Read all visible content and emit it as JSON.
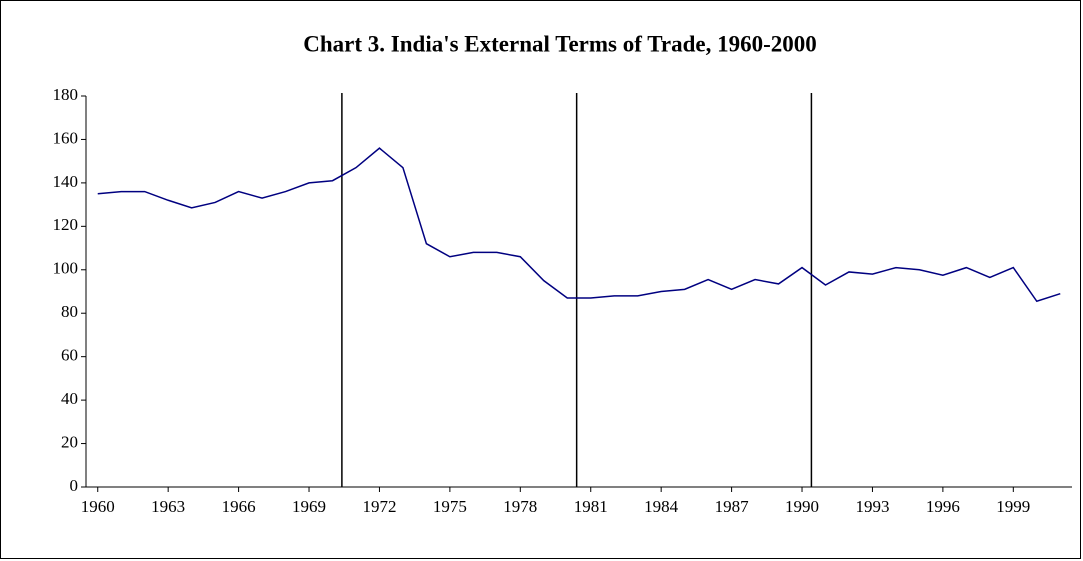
{
  "chart_data": {
    "type": "line",
    "title": "Chart 3. India's External Terms of Trade, 1960-2000",
    "x": [
      1960,
      1961,
      1962,
      1963,
      1964,
      1965,
      1966,
      1967,
      1968,
      1969,
      1970,
      1971,
      1972,
      1973,
      1974,
      1975,
      1976,
      1977,
      1978,
      1979,
      1980,
      1981,
      1982,
      1983,
      1984,
      1985,
      1986,
      1987,
      1988,
      1989,
      1990,
      1991,
      1992,
      1993,
      1994,
      1995,
      1996,
      1997,
      1998,
      1999,
      2000,
      2001
    ],
    "series": [
      {
        "name": "Terms of trade",
        "color": "#000080",
        "values": [
          135,
          136,
          136,
          132,
          128.5,
          131,
          136,
          133,
          136,
          140,
          141,
          147,
          156,
          147,
          112,
          106,
          108,
          108,
          106,
          95,
          87,
          87,
          88,
          88,
          90,
          91,
          95.5,
          91,
          95.5,
          93.5,
          101,
          93,
          99,
          98,
          101,
          100,
          97.5,
          101,
          96.5,
          101,
          85.5,
          89
        ]
      }
    ],
    "xlim": [
      1959.5,
      2001.5
    ],
    "xticks": [
      1960,
      1963,
      1966,
      1969,
      1972,
      1975,
      1978,
      1981,
      1984,
      1987,
      1990,
      1993,
      1996,
      1999
    ],
    "ylim": [
      0,
      180
    ],
    "yticks": [
      0,
      20,
      40,
      60,
      80,
      100,
      120,
      140,
      160,
      180
    ],
    "vlines": [
      1970.4,
      1980.4,
      1990.4
    ],
    "vline_color": "#000000"
  }
}
